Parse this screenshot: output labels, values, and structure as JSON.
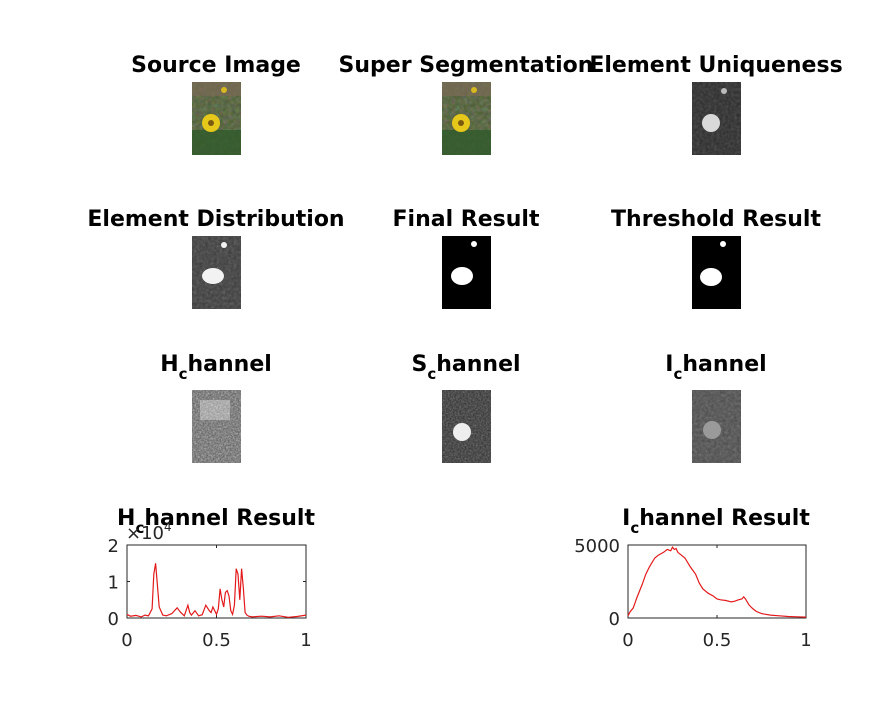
{
  "figure": {
    "panels": [
      {
        "title": "Source Image",
        "kind": "color"
      },
      {
        "title": "Super Segmentation",
        "kind": "color"
      },
      {
        "title": "Element Uniqueness",
        "kind": "gray-soft"
      },
      {
        "title": "Element Distribution",
        "kind": "gray-soft"
      },
      {
        "title": "Final Result",
        "kind": "binary"
      },
      {
        "title": "Threshold Result",
        "kind": "binary"
      },
      {
        "title_main": "H",
        "title_sub": "c",
        "title_rest": "hannel",
        "kind": "gray-noisy"
      },
      {
        "title_main": "S",
        "title_sub": "c",
        "title_rest": "hannel",
        "kind": "gray-s"
      },
      {
        "title_main": "I",
        "title_sub": "c",
        "title_rest": "hannel",
        "kind": "gray-i"
      }
    ]
  },
  "chart_data": [
    {
      "type": "line",
      "title_main": "H",
      "title_sub": "c",
      "title_rest": "hannel Result",
      "color": "#e31a1c",
      "multiplier_base": "×10",
      "multiplier_exp": "4",
      "xlim": [
        0,
        1
      ],
      "ylim": [
        0,
        20000
      ],
      "xticks": [
        0,
        0.5,
        1
      ],
      "xtick_labels": [
        "0",
        "0.5",
        "1"
      ],
      "yticks": [
        0,
        10000,
        20000
      ],
      "ytick_labels": [
        "0",
        "1",
        "2"
      ],
      "x": [
        0,
        0.02,
        0.05,
        0.08,
        0.1,
        0.12,
        0.14,
        0.15,
        0.16,
        0.17,
        0.18,
        0.2,
        0.22,
        0.25,
        0.28,
        0.3,
        0.32,
        0.34,
        0.35,
        0.36,
        0.38,
        0.4,
        0.42,
        0.44,
        0.46,
        0.47,
        0.48,
        0.5,
        0.51,
        0.52,
        0.53,
        0.54,
        0.55,
        0.56,
        0.57,
        0.58,
        0.59,
        0.6,
        0.61,
        0.62,
        0.63,
        0.64,
        0.65,
        0.66,
        0.67,
        0.68,
        0.7,
        0.75,
        0.8,
        0.85,
        0.9,
        0.95,
        1.0
      ],
      "y": [
        1000,
        500,
        700,
        300,
        800,
        600,
        2500,
        12000,
        15000,
        9000,
        3000,
        800,
        600,
        1200,
        2800,
        1500,
        600,
        3500,
        1500,
        800,
        2000,
        600,
        900,
        3500,
        2000,
        1500,
        3000,
        1000,
        2500,
        8000,
        5000,
        3000,
        7000,
        7500,
        6000,
        2000,
        1000,
        3500,
        13500,
        12000,
        5000,
        13500,
        8000,
        1500,
        800,
        500,
        300,
        500,
        300,
        600,
        200,
        400,
        800
      ]
    },
    {
      "type": "line",
      "title_main": "I",
      "title_sub": "c",
      "title_rest": "hannel Result",
      "color": "#e31a1c",
      "xlim": [
        0,
        1
      ],
      "ylim": [
        0,
        5000
      ],
      "xticks": [
        0,
        0.5,
        1
      ],
      "xtick_labels": [
        "0",
        "0.5",
        "1"
      ],
      "yticks": [
        0,
        5000
      ],
      "ytick_labels": [
        "0",
        "5000"
      ],
      "x": [
        0,
        0.01,
        0.03,
        0.05,
        0.08,
        0.1,
        0.12,
        0.15,
        0.17,
        0.2,
        0.22,
        0.24,
        0.25,
        0.26,
        0.27,
        0.28,
        0.3,
        0.32,
        0.35,
        0.38,
        0.4,
        0.42,
        0.45,
        0.48,
        0.5,
        0.52,
        0.55,
        0.58,
        0.6,
        0.62,
        0.64,
        0.65,
        0.66,
        0.68,
        0.7,
        0.72,
        0.75,
        0.8,
        0.85,
        0.9,
        0.95,
        1.0
      ],
      "y": [
        150,
        400,
        700,
        1400,
        2300,
        3000,
        3500,
        4100,
        4300,
        4500,
        4700,
        4600,
        4850,
        4700,
        4750,
        4500,
        4300,
        4100,
        3500,
        3000,
        2400,
        2000,
        1700,
        1500,
        1300,
        1250,
        1200,
        1100,
        1150,
        1250,
        1300,
        1450,
        1300,
        900,
        650,
        450,
        300,
        200,
        150,
        100,
        80,
        60
      ]
    }
  ]
}
